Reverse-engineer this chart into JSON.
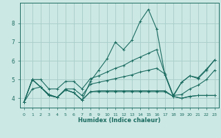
{
  "xlabel": "Humidex (Indice chaleur)",
  "background_color": "#cce8e4",
  "grid_color": "#aacfcb",
  "line_color": "#1a6b60",
  "xlim": [
    -0.5,
    23.5
  ],
  "ylim": [
    3.5,
    9.1
  ],
  "yticks": [
    4,
    5,
    6,
    7,
    8
  ],
  "xticks": [
    0,
    1,
    2,
    3,
    4,
    5,
    6,
    7,
    8,
    9,
    10,
    11,
    12,
    13,
    14,
    15,
    16,
    17,
    18,
    19,
    20,
    21,
    22,
    23
  ],
  "curves": [
    [
      3.8,
      4.5,
      4.6,
      4.2,
      4.05,
      4.45,
      4.3,
      3.9,
      4.9,
      5.5,
      6.1,
      7.0,
      6.6,
      7.1,
      8.1,
      8.75,
      7.7,
      5.25,
      4.1,
      4.85,
      5.2,
      5.05,
      5.5,
      6.05
    ],
    [
      3.8,
      5.0,
      4.6,
      4.2,
      4.05,
      4.45,
      4.3,
      3.9,
      4.35,
      4.35,
      4.35,
      4.35,
      4.35,
      4.35,
      4.35,
      4.35,
      4.35,
      4.35,
      4.1,
      4.0,
      4.1,
      4.15,
      4.15,
      4.15
    ],
    [
      3.8,
      5.0,
      4.6,
      4.15,
      4.05,
      4.45,
      4.3,
      3.9,
      4.35,
      4.4,
      4.4,
      4.4,
      4.4,
      4.4,
      4.4,
      4.4,
      4.4,
      4.4,
      4.1,
      4.0,
      4.1,
      4.15,
      4.15,
      4.15
    ],
    [
      3.8,
      5.0,
      4.6,
      4.15,
      4.05,
      4.5,
      4.5,
      4.15,
      4.75,
      4.85,
      4.95,
      5.05,
      5.15,
      5.25,
      5.4,
      5.5,
      5.6,
      5.3,
      4.15,
      4.2,
      4.5,
      4.7,
      5.0,
      5.5
    ],
    [
      3.8,
      5.0,
      5.0,
      4.5,
      4.5,
      4.9,
      4.9,
      4.5,
      5.05,
      5.2,
      5.4,
      5.6,
      5.75,
      6.0,
      6.2,
      6.4,
      6.6,
      5.3,
      4.15,
      4.85,
      5.2,
      5.1,
      5.55,
      6.05
    ]
  ]
}
